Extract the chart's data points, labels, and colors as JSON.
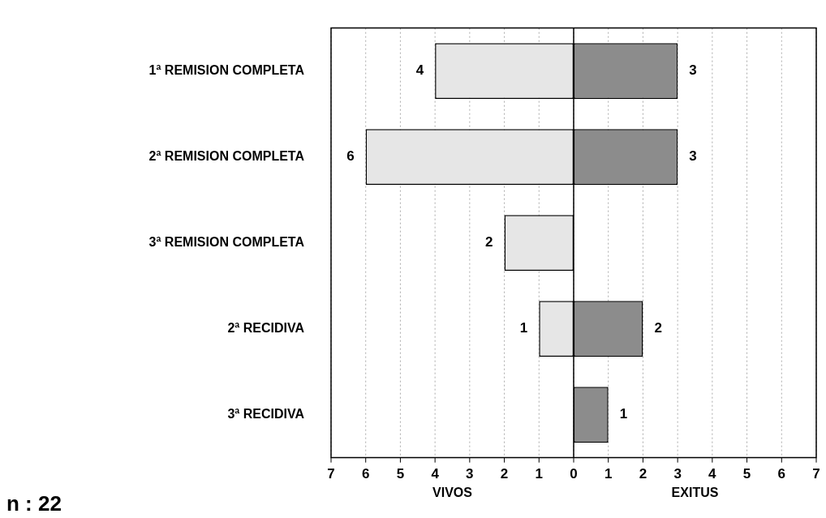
{
  "chart_data": {
    "type": "bar",
    "orientation": "horizontal",
    "categories": [
      "1ª REMISION COMPLETA",
      "2ª REMISION COMPLETA",
      "3ª REMISION COMPLETA",
      "2ª RECIDIVA",
      "3ª RECIDIVA"
    ],
    "series": [
      {
        "color": "#e6e6e6",
        "values": [
          4,
          6,
          2,
          1,
          null
        ],
        "base": [
          -4,
          -6,
          -2,
          -1,
          null
        ],
        "value_labels": [
          "4",
          "6",
          "2",
          "1",
          null
        ]
      },
      {
        "color": "#8c8c8c",
        "values": [
          3,
          3,
          0,
          2,
          1
        ],
        "value_labels": [
          "3",
          "3",
          null,
          "2",
          "1"
        ]
      }
    ],
    "xlim": [
      -7,
      7
    ],
    "xticks": [
      {
        "value": -7,
        "label": "7"
      },
      {
        "value": -6,
        "label": "6"
      },
      {
        "value": -5,
        "label": "5"
      },
      {
        "value": -4,
        "label": "4"
      },
      {
        "value": -3,
        "label": "3"
      },
      {
        "value": -2,
        "label": "2"
      },
      {
        "value": -1,
        "label": "1"
      },
      0,
      1,
      2,
      3,
      4,
      5,
      6,
      7
    ],
    "grid": "x",
    "legend": false,
    "annotations": [
      "VIVOS",
      "EXITUS",
      "n : 22"
    ]
  }
}
